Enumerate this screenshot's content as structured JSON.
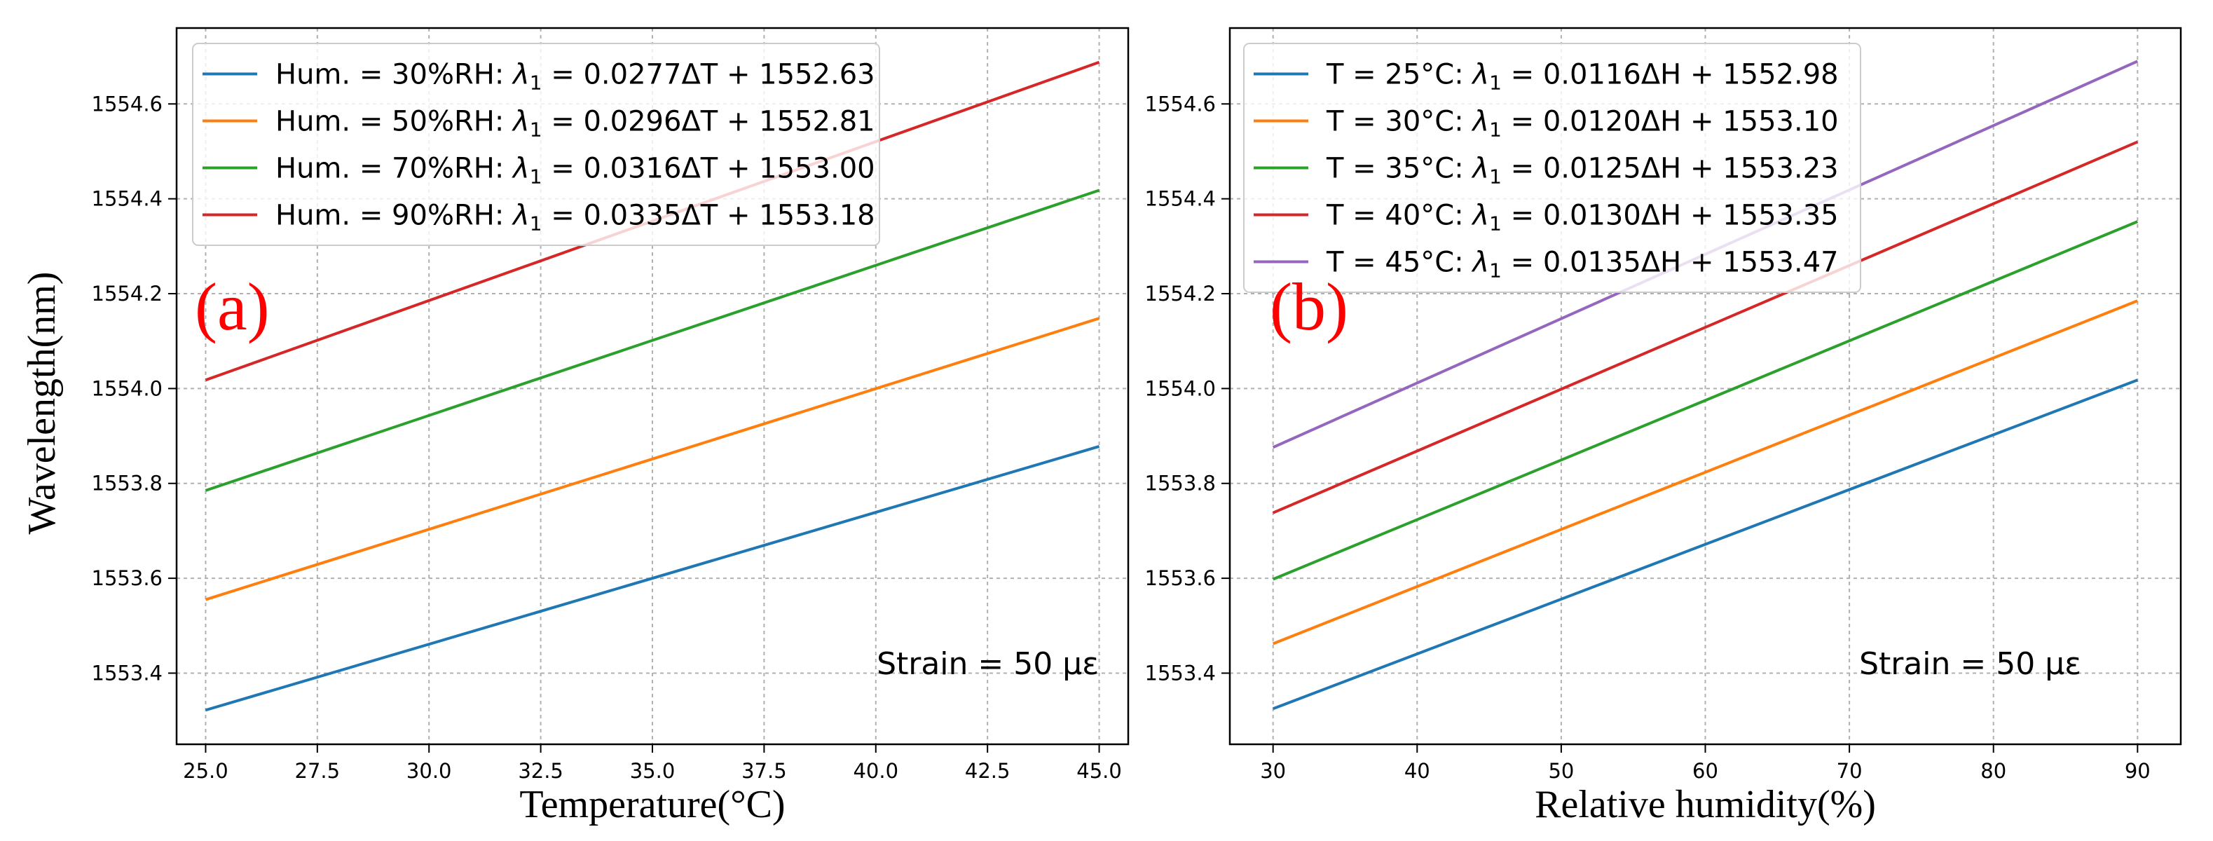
{
  "figure": {
    "ylabel": "Wavelength(nm)"
  },
  "chart_data": [
    {
      "type": "line",
      "panel_label": "(a)",
      "xlabel": "Temperature(°C)",
      "ylabel": "Wavelength(nm)",
      "xlim": [
        24.35,
        45.65
      ],
      "ylim": [
        1553.25,
        1554.76
      ],
      "xticks": [
        25.0,
        27.5,
        30.0,
        32.5,
        35.0,
        37.5,
        40.0,
        42.5,
        45.0
      ],
      "xtick_labels": [
        "25.0",
        "27.5",
        "30.0",
        "32.5",
        "35.0",
        "37.5",
        "40.0",
        "42.5",
        "45.0"
      ],
      "yticks": [
        1553.4,
        1553.6,
        1553.8,
        1554.0,
        1554.2,
        1554.4,
        1554.6
      ],
      "ytick_labels": [
        "1553.4",
        "1553.6",
        "1553.8",
        "1554.0",
        "1554.2",
        "1554.4",
        "1554.6"
      ],
      "grid": true,
      "legend_position": "top-left",
      "annotation": "Strain = 50 με",
      "x": [
        25.0,
        45.0
      ],
      "series": [
        {
          "name": "Hum. = 30%RH",
          "legend": {
            "prefix": "Hum. = 30%RH: ",
            "sym": "λ",
            "sub": "1",
            "rest": " = 0.0277ΔT + 1552.63"
          },
          "color": "#1f77b4",
          "values": [
            1553.322,
            1553.878
          ]
        },
        {
          "name": "Hum. = 50%RH",
          "legend": {
            "prefix": "Hum. = 50%RH: ",
            "sym": "λ",
            "sub": "1",
            "rest": " = 0.0296ΔT + 1552.81"
          },
          "color": "#ff7f0e",
          "values": [
            1553.555,
            1554.148
          ]
        },
        {
          "name": "Hum. = 70%RH",
          "legend": {
            "prefix": "Hum. = 70%RH: ",
            "sym": "λ",
            "sub": "1",
            "rest": " = 0.0316ΔT + 1553.00"
          },
          "color": "#2ca02c",
          "values": [
            1553.785,
            1554.418
          ]
        },
        {
          "name": "Hum. = 90%RH",
          "legend": {
            "prefix": "Hum. = 90%RH: ",
            "sym": "λ",
            "sub": "1",
            "rest": " = 0.0335ΔT + 1553.18"
          },
          "color": "#d62728",
          "values": [
            1554.018,
            1554.688
          ]
        }
      ]
    },
    {
      "type": "line",
      "panel_label": "(b)",
      "xlabel": "Relative humidity(%)",
      "ylabel": "",
      "xlim": [
        27.0,
        93.0
      ],
      "ylim": [
        1553.25,
        1554.76
      ],
      "xticks": [
        30,
        40,
        50,
        60,
        70,
        80,
        90
      ],
      "xtick_labels": [
        "30",
        "40",
        "50",
        "60",
        "70",
        "80",
        "90"
      ],
      "yticks": [
        1553.4,
        1553.6,
        1553.8,
        1554.0,
        1554.2,
        1554.4,
        1554.6
      ],
      "ytick_labels": [
        "1553.4",
        "1553.6",
        "1553.8",
        "1554.0",
        "1554.2",
        "1554.4",
        "1554.6"
      ],
      "grid": true,
      "legend_position": "top-left",
      "annotation": "Strain = 50 με",
      "x": [
        30,
        90
      ],
      "series": [
        {
          "name": "T = 25°C",
          "legend": {
            "prefix": "T = 25°C: ",
            "sym": "λ",
            "sub": "1",
            "rest": " = 0.0116ΔH + 1552.98"
          },
          "color": "#1f77b4",
          "values": [
            1553.325,
            1554.018
          ]
        },
        {
          "name": "T = 30°C",
          "legend": {
            "prefix": "T = 30°C: ",
            "sym": "λ",
            "sub": "1",
            "rest": " = 0.0120ΔH + 1553.10"
          },
          "color": "#ff7f0e",
          "values": [
            1553.462,
            1554.185
          ]
        },
        {
          "name": "T = 35°C",
          "legend": {
            "prefix": "T = 35°C: ",
            "sym": "λ",
            "sub": "1",
            "rest": " = 0.0125ΔH + 1553.23"
          },
          "color": "#2ca02c",
          "values": [
            1553.598,
            1554.352
          ]
        },
        {
          "name": "T = 40°C",
          "legend": {
            "prefix": "T = 40°C: ",
            "sym": "λ",
            "sub": "1",
            "rest": " = 0.0130ΔH + 1553.35"
          },
          "color": "#d62728",
          "values": [
            1553.738,
            1554.52
          ]
        },
        {
          "name": "T = 45°C",
          "legend": {
            "prefix": "T = 45°C: ",
            "sym": "λ",
            "sub": "1",
            "rest": " = 0.0135ΔH + 1553.47"
          },
          "color": "#9467bd",
          "values": [
            1553.876,
            1554.69
          ]
        }
      ]
    }
  ]
}
